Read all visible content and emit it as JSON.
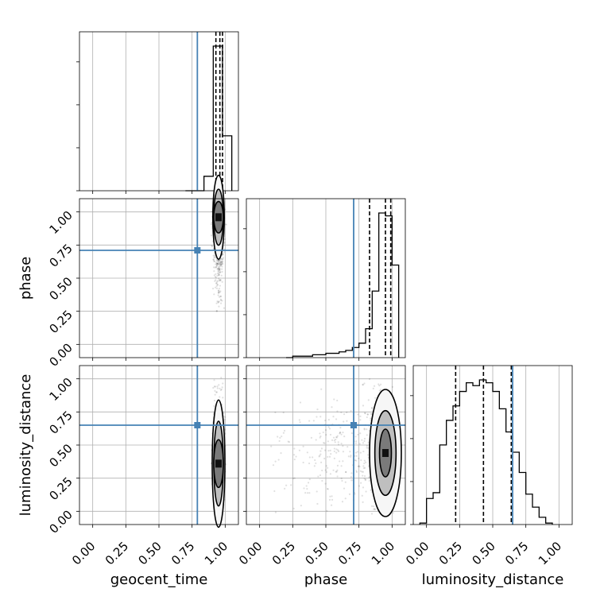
{
  "chart_data": {
    "type": "corner",
    "parameters": [
      "geocent_time",
      "phase",
      "luminosity_distance"
    ],
    "truths": [
      0.79,
      0.71,
      0.65
    ],
    "truth_color": "#4682b4",
    "ticks": [
      "0.00",
      "0.25",
      "0.50",
      "0.75",
      "1.00"
    ],
    "axis_range": [
      -0.1,
      1.1
    ],
    "grid": true,
    "panels": [
      {
        "kind": "hist",
        "param": "geocent_time",
        "bins": [
          {
            "x0": 0.7,
            "x1": 0.77,
            "h": 0.0
          },
          {
            "x0": 0.77,
            "x1": 0.84,
            "h": 0.0
          },
          {
            "x0": 0.84,
            "x1": 0.91,
            "h": 0.1
          },
          {
            "x0": 0.91,
            "x1": 0.98,
            "h": 1.0
          },
          {
            "x0": 0.98,
            "x1": 1.05,
            "h": 0.38
          }
        ],
        "quantiles": [
          0.93,
          0.96,
          0.98
        ]
      },
      {
        "kind": "hist",
        "param": "phase",
        "bins": [
          {
            "x0": 0.2,
            "x1": 0.25,
            "h": 0.0
          },
          {
            "x0": 0.25,
            "x1": 0.3,
            "h": 0.01
          },
          {
            "x0": 0.3,
            "x1": 0.35,
            "h": 0.01
          },
          {
            "x0": 0.35,
            "x1": 0.4,
            "h": 0.01
          },
          {
            "x0": 0.4,
            "x1": 0.45,
            "h": 0.02
          },
          {
            "x0": 0.45,
            "x1": 0.5,
            "h": 0.02
          },
          {
            "x0": 0.5,
            "x1": 0.55,
            "h": 0.03
          },
          {
            "x0": 0.55,
            "x1": 0.6,
            "h": 0.03
          },
          {
            "x0": 0.6,
            "x1": 0.65,
            "h": 0.04
          },
          {
            "x0": 0.65,
            "x1": 0.7,
            "h": 0.05
          },
          {
            "x0": 0.7,
            "x1": 0.75,
            "h": 0.07
          },
          {
            "x0": 0.75,
            "x1": 0.8,
            "h": 0.1
          },
          {
            "x0": 0.8,
            "x1": 0.85,
            "h": 0.2
          },
          {
            "x0": 0.85,
            "x1": 0.9,
            "h": 0.46
          },
          {
            "x0": 0.9,
            "x1": 0.95,
            "h": 1.0
          },
          {
            "x0": 0.95,
            "x1": 1.0,
            "h": 0.98
          },
          {
            "x0": 1.0,
            "x1": 1.05,
            "h": 0.64
          }
        ],
        "quantiles": [
          0.83,
          0.95,
          0.99
        ]
      },
      {
        "kind": "hist",
        "param": "luminosity_distance",
        "bins": [
          {
            "x0": -0.05,
            "x1": 0.0,
            "h": 0.01
          },
          {
            "x0": 0.0,
            "x1": 0.05,
            "h": 0.18
          },
          {
            "x0": 0.05,
            "x1": 0.1,
            "h": 0.22
          },
          {
            "x0": 0.1,
            "x1": 0.15,
            "h": 0.55
          },
          {
            "x0": 0.15,
            "x1": 0.2,
            "h": 0.72
          },
          {
            "x0": 0.2,
            "x1": 0.25,
            "h": 0.82
          },
          {
            "x0": 0.25,
            "x1": 0.3,
            "h": 0.92
          },
          {
            "x0": 0.3,
            "x1": 0.35,
            "h": 0.98
          },
          {
            "x0": 0.35,
            "x1": 0.4,
            "h": 0.96
          },
          {
            "x0": 0.4,
            "x1": 0.45,
            "h": 1.0
          },
          {
            "x0": 0.45,
            "x1": 0.5,
            "h": 0.98
          },
          {
            "x0": 0.5,
            "x1": 0.55,
            "h": 0.92
          },
          {
            "x0": 0.55,
            "x1": 0.6,
            "h": 0.8
          },
          {
            "x0": 0.6,
            "x1": 0.65,
            "h": 0.64
          },
          {
            "x0": 0.65,
            "x1": 0.7,
            "h": 0.5
          },
          {
            "x0": 0.7,
            "x1": 0.75,
            "h": 0.36
          },
          {
            "x0": 0.75,
            "x1": 0.8,
            "h": 0.21
          },
          {
            "x0": 0.8,
            "x1": 0.85,
            "h": 0.12
          },
          {
            "x0": 0.85,
            "x1": 0.9,
            "h": 0.05
          },
          {
            "x0": 0.9,
            "x1": 0.95,
            "h": 0.01
          }
        ],
        "quantiles": [
          0.22,
          0.43,
          0.64
        ]
      },
      {
        "kind": "scatter2d",
        "x_param": "geocent_time",
        "y_param": "phase",
        "x_center": 0.95,
        "x_spread": 0.018,
        "y_center": 0.86,
        "y_spread": 0.13,
        "mode": [
          0.95,
          0.96
        ]
      },
      {
        "kind": "scatter2d",
        "x_param": "geocent_time",
        "y_param": "luminosity_distance",
        "x_center": 0.95,
        "x_spread": 0.02,
        "y_center": 0.44,
        "y_spread": 0.2,
        "mode": [
          0.95,
          0.36
        ]
      },
      {
        "kind": "scatter2d",
        "x_param": "phase",
        "y_param": "luminosity_distance",
        "x_center": 0.93,
        "x_spread": 0.05,
        "y_center": 0.44,
        "y_spread": 0.2,
        "x_tail_to": 0.05,
        "mode": [
          0.95,
          0.44
        ]
      }
    ]
  }
}
